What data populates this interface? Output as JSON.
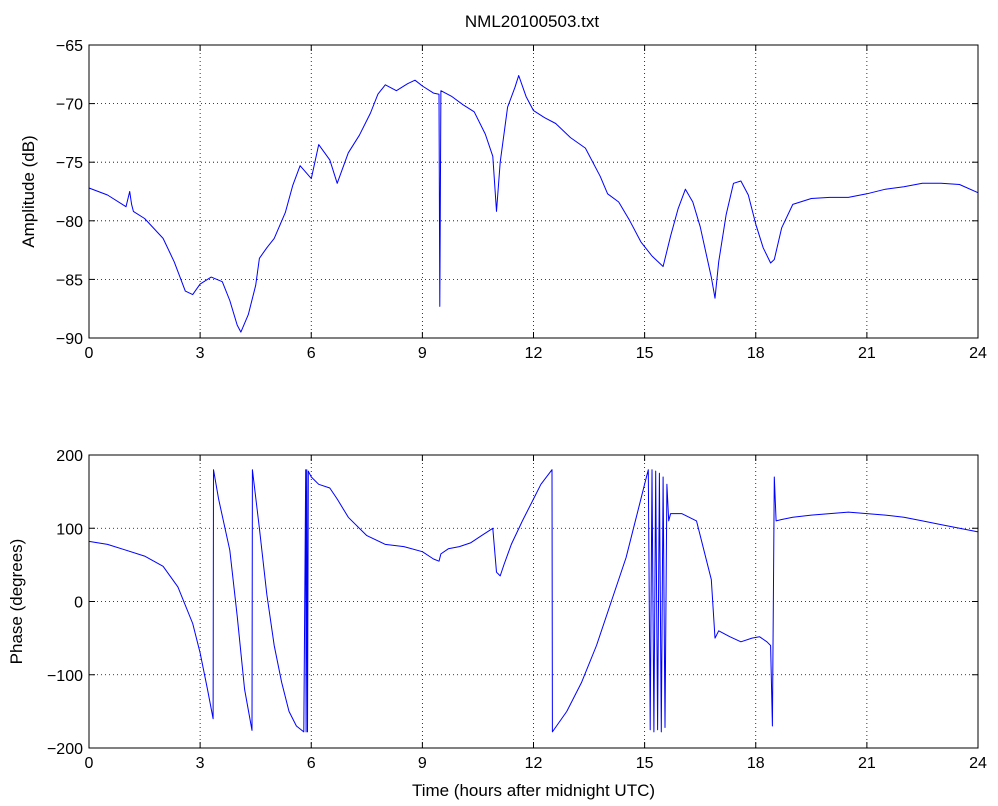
{
  "figure_title": "NML20100503.txt",
  "colors": {
    "series": "#0000ff",
    "axes": "#000000",
    "background": "#ffffff"
  },
  "chart_data": [
    {
      "type": "line",
      "title": "NML20100503.txt",
      "xlabel": "",
      "ylabel": "Amplitude (dB)",
      "xlim": [
        0,
        24
      ],
      "ylim": [
        -90,
        -65
      ],
      "xticks": [
        0,
        3,
        6,
        9,
        12,
        15,
        18,
        21,
        24
      ],
      "yticks": [
        -90,
        -85,
        -80,
        -75,
        -70,
        -65
      ],
      "xtick_labels": [
        "0",
        "3",
        "6",
        "9",
        "12",
        "15",
        "18",
        "21",
        "24"
      ],
      "ytick_labels": [
        "−90",
        "−85",
        "−80",
        "−75",
        "−70",
        "−65"
      ],
      "grid": true,
      "series": [
        {
          "color": "#0000ff",
          "x": [
            0,
            0.5,
            1.0,
            1.1,
            1.15,
            1.2,
            1.5,
            2.0,
            2.3,
            2.6,
            2.8,
            3.0,
            3.3,
            3.6,
            3.8,
            4.0,
            4.1,
            4.3,
            4.5,
            4.6,
            4.8,
            5.0,
            5.3,
            5.5,
            5.7,
            6.0,
            6.2,
            6.5,
            6.7,
            7.0,
            7.3,
            7.6,
            7.8,
            8.0,
            8.3,
            8.6,
            8.8,
            9.0,
            9.3,
            9.45,
            9.47,
            9.5,
            9.8,
            10.1,
            10.4,
            10.7,
            10.9,
            11.0,
            11.1,
            11.3,
            11.5,
            11.6,
            11.8,
            12.0,
            12.3,
            12.6,
            13.0,
            13.4,
            13.8,
            14.0,
            14.3,
            14.6,
            14.9,
            15.2,
            15.5,
            15.7,
            15.9,
            16.1,
            16.3,
            16.5,
            16.8,
            16.9,
            17.0,
            17.2,
            17.4,
            17.6,
            17.8,
            18.0,
            18.2,
            18.4,
            18.5,
            18.7,
            19.0,
            19.5,
            20.0,
            20.5,
            21.0,
            21.5,
            22.0,
            22.5,
            23.0,
            23.5,
            24.0
          ],
          "values": [
            -77.2,
            -77.8,
            -78.8,
            -77.5,
            -78.6,
            -79.2,
            -79.8,
            -81.5,
            -83.5,
            -86.0,
            -86.3,
            -85.4,
            -84.8,
            -85.2,
            -86.8,
            -88.9,
            -89.5,
            -88.0,
            -85.5,
            -83.2,
            -82.3,
            -81.5,
            -79.3,
            -77.0,
            -75.3,
            -76.4,
            -73.5,
            -74.8,
            -76.8,
            -74.2,
            -72.7,
            -70.8,
            -69.2,
            -68.4,
            -68.9,
            -68.3,
            -68.0,
            -68.5,
            -69.1,
            -69.2,
            -87.3,
            -68.9,
            -69.4,
            -70.1,
            -70.7,
            -72.6,
            -74.5,
            -79.2,
            -75.0,
            -70.3,
            -68.6,
            -67.6,
            -69.4,
            -70.6,
            -71.2,
            -71.7,
            -72.9,
            -73.8,
            -76.2,
            -77.7,
            -78.4,
            -80.0,
            -81.8,
            -83.0,
            -83.9,
            -81.3,
            -79.0,
            -77.3,
            -78.4,
            -80.5,
            -84.8,
            -86.6,
            -83.5,
            -79.5,
            -76.8,
            -76.6,
            -77.8,
            -80.3,
            -82.3,
            -83.6,
            -83.3,
            -80.6,
            -78.6,
            -78.1,
            -78.0,
            -78.0,
            -77.7,
            -77.3,
            -77.1,
            -76.8,
            -76.8,
            -76.9,
            -77.6
          ]
        }
      ]
    },
    {
      "type": "line",
      "title": "",
      "xlabel": "Time (hours after midnight UTC)",
      "ylabel": "Phase (degrees)",
      "xlim": [
        0,
        24
      ],
      "ylim": [
        -200,
        200
      ],
      "xticks": [
        0,
        3,
        6,
        9,
        12,
        15,
        18,
        21,
        24
      ],
      "yticks": [
        -200,
        -100,
        0,
        100,
        200
      ],
      "xtick_labels": [
        "0",
        "3",
        "6",
        "9",
        "12",
        "15",
        "18",
        "21",
        "24"
      ],
      "ytick_labels": [
        "−200",
        "−100",
        "0",
        "100",
        "200"
      ],
      "grid": true,
      "series": [
        {
          "color": "#0000ff",
          "x": [
            0,
            0.5,
            1.0,
            1.5,
            2.0,
            2.4,
            2.8,
            3.0,
            3.2,
            3.35,
            3.36,
            3.5,
            3.8,
            4.0,
            4.2,
            4.4,
            4.41,
            4.6,
            4.8,
            5.0,
            5.2,
            5.4,
            5.6,
            5.8,
            5.85,
            5.86,
            5.88,
            5.9,
            5.92,
            5.95,
            6.0,
            6.2,
            6.5,
            6.7,
            7.0,
            7.5,
            8.0,
            8.5,
            9.0,
            9.3,
            9.45,
            9.5,
            9.7,
            10.0,
            10.3,
            10.6,
            10.9,
            11.0,
            11.1,
            11.2,
            11.4,
            11.7,
            12.0,
            12.2,
            12.5,
            12.51,
            12.9,
            13.3,
            13.7,
            14.1,
            14.5,
            14.8,
            15.0,
            15.1,
            15.15,
            15.2,
            15.25,
            15.3,
            15.35,
            15.4,
            15.45,
            15.5,
            15.55,
            15.6,
            15.65,
            15.7,
            16.0,
            16.4,
            16.8,
            16.9,
            17.0,
            17.3,
            17.6,
            17.9,
            18.1,
            18.3,
            18.4,
            18.45,
            18.5,
            18.55,
            18.7,
            19.0,
            19.5,
            20.0,
            20.5,
            21.0,
            21.5,
            22.0,
            22.5,
            23.0,
            23.5,
            24.0
          ],
          "values": [
            82,
            78,
            70,
            62,
            48,
            20,
            -30,
            -70,
            -120,
            -160,
            180,
            140,
            70,
            -20,
            -120,
            -176,
            180,
            100,
            10,
            -60,
            -110,
            -150,
            -170,
            -178,
            180,
            -178,
            180,
            -178,
            178,
            175,
            170,
            160,
            155,
            140,
            115,
            90,
            78,
            75,
            68,
            58,
            55,
            65,
            72,
            75,
            80,
            90,
            100,
            40,
            35,
            50,
            78,
            110,
            140,
            160,
            180,
            -178,
            -150,
            -110,
            -60,
            0,
            60,
            120,
            160,
            180,
            -175,
            180,
            -178,
            178,
            -175,
            175,
            -178,
            170,
            -172,
            160,
            110,
            120,
            120,
            110,
            30,
            -50,
            -40,
            -48,
            -55,
            -50,
            -48,
            -55,
            -60,
            -170,
            170,
            110,
            112,
            115,
            118,
            120,
            122,
            120,
            118,
            115,
            110,
            105,
            100,
            95
          ]
        }
      ]
    }
  ]
}
